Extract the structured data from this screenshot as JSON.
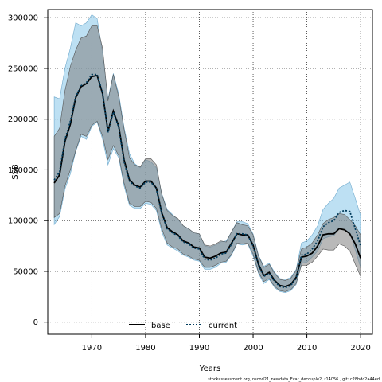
{
  "chart_data": {
    "type": "line",
    "xlabel": "Years",
    "ylabel": "SSB",
    "xlim": [
      1961.8,
      2022.2
    ],
    "ylim": [
      -12000,
      308000
    ],
    "x_ticks": [
      1970,
      1980,
      1990,
      2000,
      2010,
      2020
    ],
    "y_ticks": [
      0,
      50000,
      100000,
      150000,
      200000,
      250000,
      300000
    ],
    "grid": true,
    "legend_position": "bottom-center",
    "footer": "stockassessment.org, nscod21_newdata_Fvar_decouple2, r14056 , git: c28bdc2a44ed",
    "colors": {
      "base": "#000000",
      "base_band": "#a8a8a8",
      "current_band": "#a7d4ee",
      "current": "#003b5c"
    },
    "years": [
      1963,
      1964,
      1965,
      1966,
      1967,
      1968,
      1969,
      1970,
      1971,
      1972,
      1973,
      1974,
      1975,
      1976,
      1977,
      1978,
      1979,
      1980,
      1981,
      1982,
      1983,
      1984,
      1985,
      1986,
      1987,
      1988,
      1989,
      1990,
      1991,
      1992,
      1993,
      1994,
      1995,
      1996,
      1997,
      1998,
      1999,
      2000,
      2001,
      2002,
      2003,
      2004,
      2005,
      2006,
      2007,
      2008,
      2009,
      2010,
      2011,
      2012,
      2013,
      2014,
      2015,
      2016,
      2017,
      2018,
      2019,
      2020
    ],
    "series": [
      {
        "name": "base",
        "values": [
          137000,
          145000,
          178000,
          195000,
          221000,
          232000,
          235000,
          242000,
          243000,
          225000,
          188000,
          208000,
          193000,
          160000,
          140000,
          135000,
          133000,
          139000,
          139000,
          132000,
          108000,
          93000,
          89000,
          86000,
          80000,
          78000,
          74000,
          73000,
          64000,
          63000,
          65000,
          68000,
          69000,
          78000,
          87000,
          86000,
          86000,
          76000,
          57000,
          46000,
          49000,
          41000,
          36000,
          35000,
          37000,
          44000,
          64000,
          65000,
          68000,
          75000,
          86000,
          87000,
          87000,
          92000,
          91000,
          87000,
          77000,
          63000
        ],
        "lower": [
          103000,
          107000,
          134000,
          150000,
          169000,
          185000,
          183000,
          194000,
          198000,
          183000,
          160000,
          174000,
          164000,
          137000,
          117000,
          114000,
          114000,
          119000,
          118000,
          112000,
          92000,
          78000,
          74000,
          72000,
          67000,
          65000,
          62000,
          61000,
          54000,
          54000,
          56000,
          59000,
          60000,
          67000,
          78000,
          77000,
          78000,
          67000,
          49000,
          40000,
          43000,
          35000,
          31000,
          30000,
          32000,
          38000,
          56000,
          56000,
          59000,
          65000,
          72000,
          71000,
          71000,
          77000,
          75000,
          70000,
          57000,
          45000
        ],
        "upper": [
          183000,
          191000,
          228000,
          252000,
          268000,
          280000,
          282000,
          292000,
          292000,
          270000,
          218000,
          244000,
          222000,
          190000,
          162000,
          155000,
          153000,
          161000,
          161000,
          155000,
          126000,
          110000,
          105000,
          102000,
          95000,
          92000,
          88000,
          87000,
          76000,
          75000,
          77000,
          80000,
          79000,
          89000,
          98000,
          96000,
          95000,
          86000,
          65000,
          54000,
          57000,
          48000,
          42000,
          41000,
          43000,
          51000,
          72000,
          74000,
          78000,
          86000,
          97000,
          101000,
          103000,
          107000,
          106000,
          101000,
          95000,
          86000
        ]
      },
      {
        "name": "current",
        "values": [
          140000,
          148000,
          180000,
          198000,
          222000,
          233000,
          236000,
          244000,
          244000,
          226000,
          187000,
          207000,
          192000,
          158000,
          139000,
          134000,
          132000,
          138000,
          138000,
          131000,
          107000,
          92000,
          88000,
          85000,
          79000,
          77000,
          73000,
          72000,
          62000,
          61000,
          63000,
          67000,
          68000,
          77000,
          87000,
          87000,
          86000,
          75000,
          56000,
          45000,
          48000,
          40000,
          35000,
          34000,
          36000,
          43000,
          66000,
          67000,
          72000,
          80000,
          94000,
          98000,
          100000,
          108000,
          110000,
          109000,
          92000,
          75000
        ],
        "lower": [
          96000,
          104000,
          131000,
          146000,
          168000,
          183000,
          180000,
          193000,
          197000,
          180000,
          155000,
          171000,
          162000,
          134000,
          115000,
          112000,
          112000,
          117000,
          116000,
          110000,
          89000,
          76000,
          73000,
          70000,
          66000,
          64000,
          61000,
          60000,
          52000,
          52000,
          54000,
          58000,
          59000,
          66000,
          77000,
          76000,
          77000,
          65000,
          48000,
          38000,
          42000,
          34000,
          30000,
          29000,
          31000,
          37000,
          58000,
          59000,
          64000,
          70000,
          82000,
          84000,
          85000,
          92000,
          91000,
          88000,
          71000,
          54000
        ],
        "upper": [
          222000,
          220000,
          250000,
          270000,
          295000,
          292000,
          295000,
          303000,
          299000,
          265000,
          220000,
          245000,
          225000,
          192000,
          166000,
          156000,
          152000,
          160000,
          158000,
          152000,
          127000,
          111000,
          106000,
          101000,
          95000,
          92000,
          88000,
          87000,
          75000,
          74000,
          76000,
          79000,
          80000,
          89000,
          99000,
          99000,
          97000,
          87000,
          66000,
          55000,
          58000,
          49000,
          43000,
          42000,
          44000,
          52000,
          78000,
          80000,
          86000,
          95000,
          111000,
          117000,
          122000,
          132000,
          135000,
          138000,
          122000,
          105000
        ]
      }
    ]
  }
}
